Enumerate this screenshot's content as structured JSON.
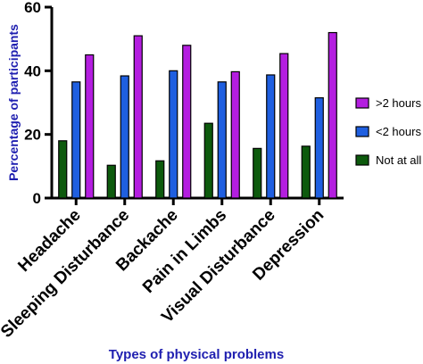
{
  "chart_data": {
    "type": "bar",
    "title": "",
    "xlabel": "Types of physical problems",
    "ylabel": "Percentage of participants",
    "ylim": [
      0,
      60
    ],
    "yticks": [
      0,
      20,
      40,
      60
    ],
    "categories": [
      "Headache",
      "Sleeping Disturbance",
      "Backache",
      "Pain in Limbs",
      "Visual Disturbance",
      "Depression"
    ],
    "series": [
      {
        "name": "Not at all",
        "color": "#0d5a0d",
        "values": [
          18,
          10.3,
          11.7,
          23.5,
          15.6,
          16.3
        ]
      },
      {
        "name": "<2 hours",
        "color": "#1f5fe0",
        "values": [
          36.5,
          38.4,
          40,
          36.5,
          38.7,
          31.5
        ]
      },
      {
        "name": ">2 hours",
        "color": "#b41ee0",
        "values": [
          45,
          51,
          48,
          39.7,
          45.4,
          52
        ]
      }
    ],
    "legend": {
      "placement": "right",
      "order": [
        ">2 hours",
        "<2 hours",
        "Not at all"
      ]
    },
    "grid": false
  }
}
